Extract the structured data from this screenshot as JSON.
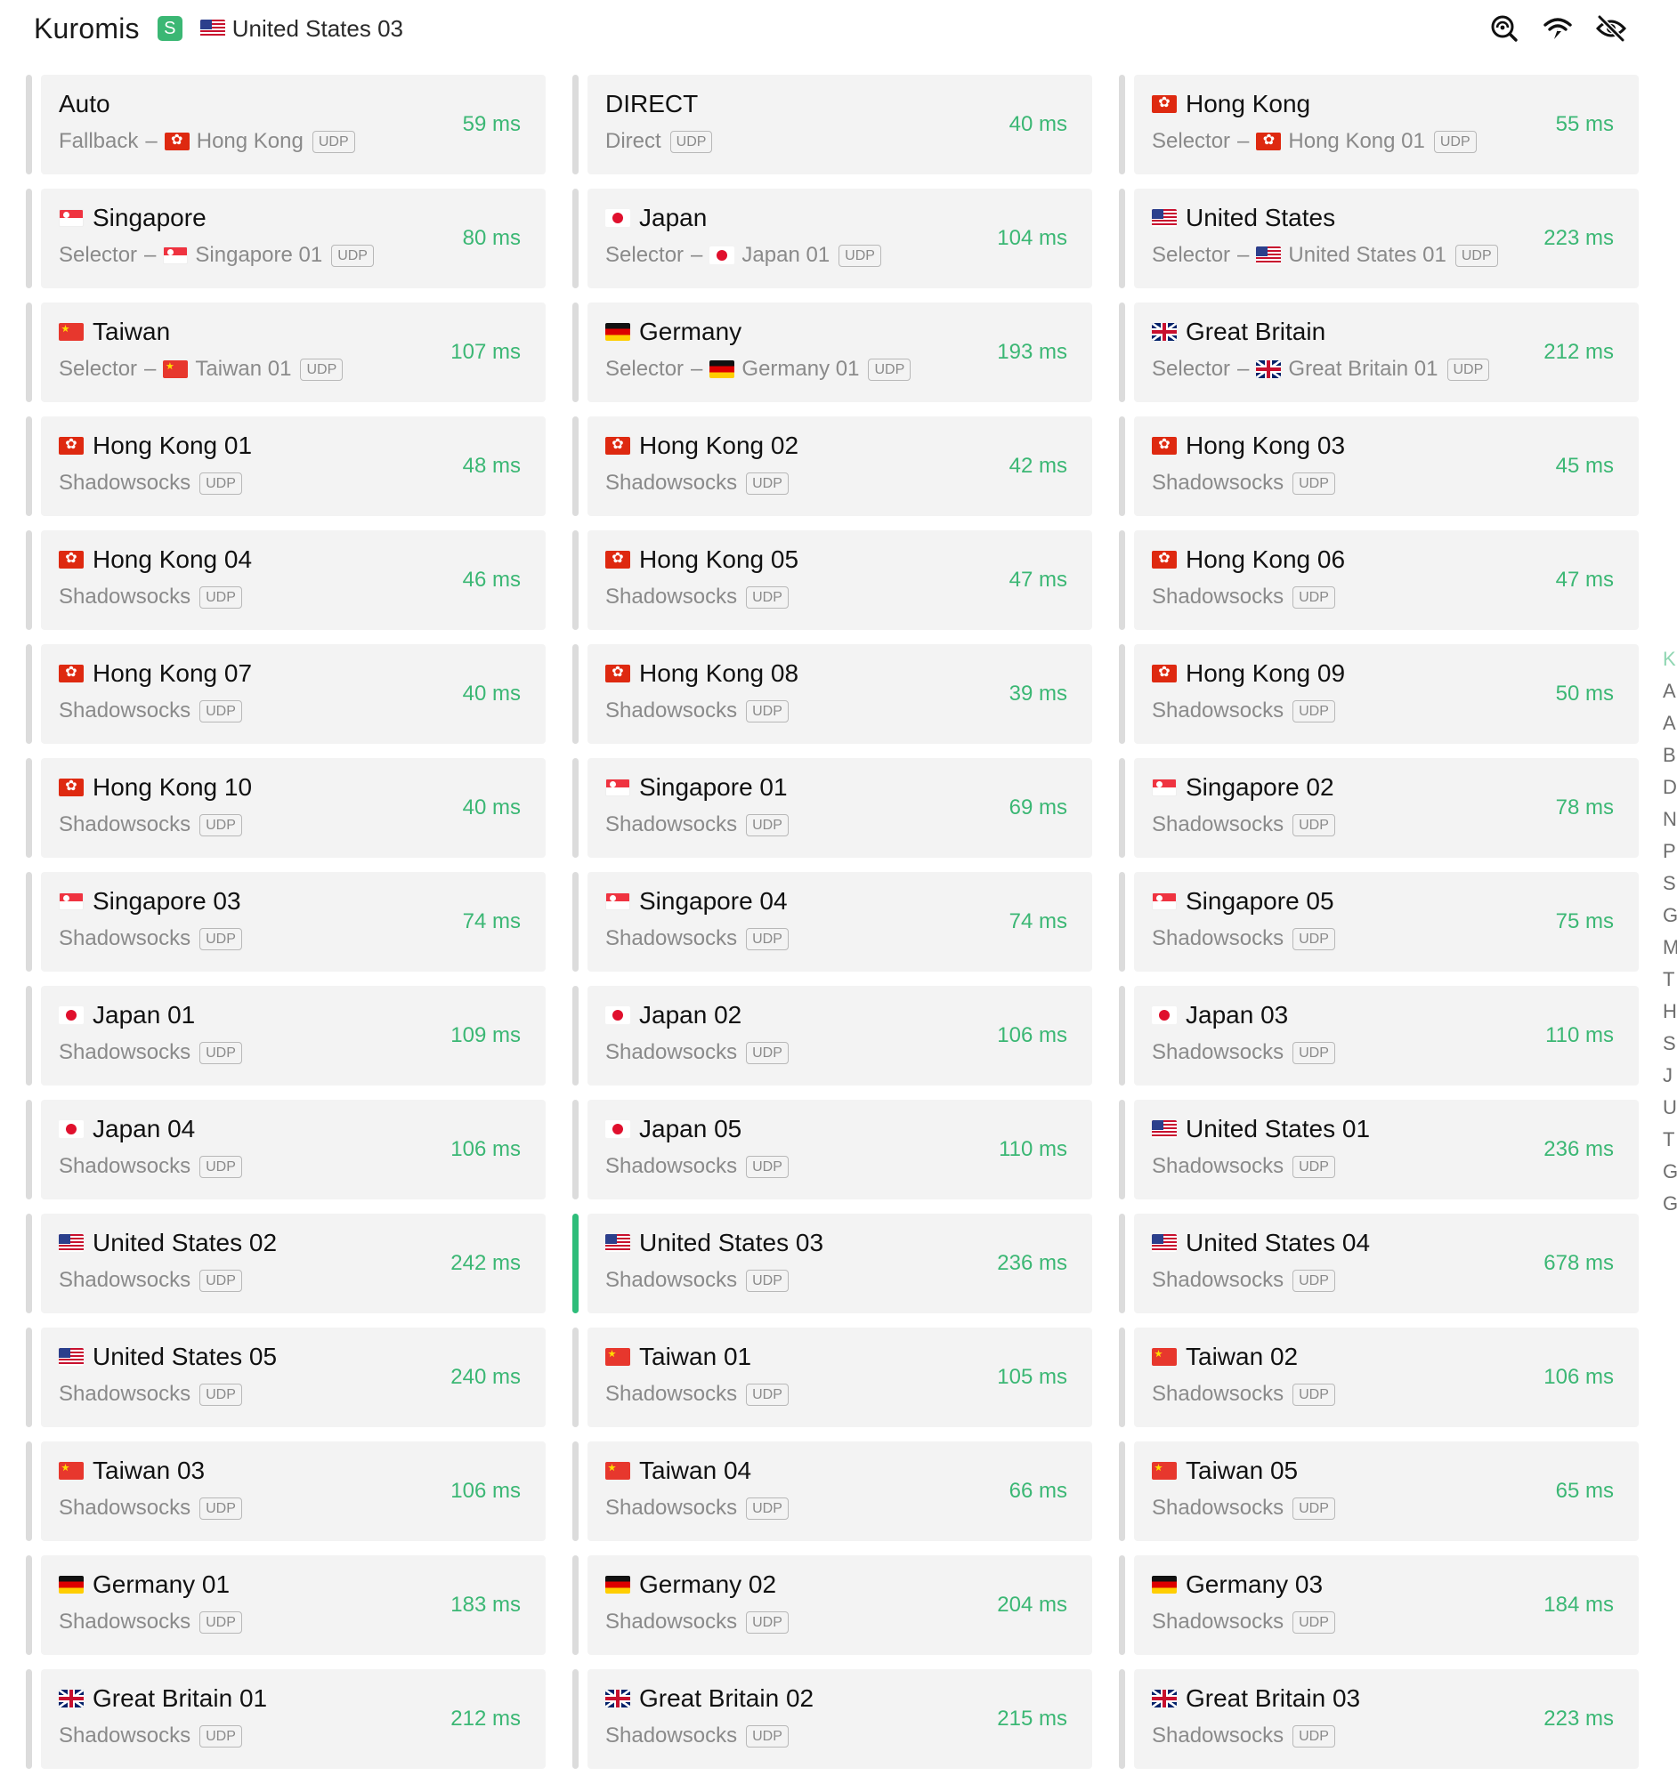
{
  "header": {
    "title": "Kuromis",
    "type_badge": "S",
    "current_proxy": {
      "flag": "us",
      "label": "United States 03"
    },
    "actions": [
      {
        "icon": "search-latency-icon"
      },
      {
        "icon": "wifi-speed-icon"
      },
      {
        "icon": "eye-slash-icon"
      }
    ]
  },
  "proxies": [
    {
      "name": "Auto",
      "flag": "",
      "type": "Fallback",
      "now_flag": "hk",
      "now": "Hong Kong",
      "udp": "UDP",
      "latency": "59 ms",
      "active": false
    },
    {
      "name": "DIRECT",
      "flag": "",
      "type": "Direct",
      "now_flag": "",
      "now": "",
      "udp": "UDP",
      "latency": "40 ms",
      "active": false
    },
    {
      "name": "Hong Kong",
      "flag": "hk",
      "type": "Selector",
      "now_flag": "hk",
      "now": "Hong Kong 01",
      "udp": "UDP",
      "latency": "55 ms",
      "active": false
    },
    {
      "name": "Singapore",
      "flag": "sg",
      "type": "Selector",
      "now_flag": "sg",
      "now": "Singapore 01",
      "udp": "UDP",
      "latency": "80 ms",
      "active": false
    },
    {
      "name": "Japan",
      "flag": "jp",
      "type": "Selector",
      "now_flag": "jp",
      "now": "Japan 01",
      "udp": "UDP",
      "latency": "104 ms",
      "active": false
    },
    {
      "name": "United States",
      "flag": "us",
      "type": "Selector",
      "now_flag": "us",
      "now": "United States 01",
      "udp": "UDP",
      "latency": "223 ms",
      "active": false
    },
    {
      "name": "Taiwan",
      "flag": "tw",
      "type": "Selector",
      "now_flag": "tw",
      "now": "Taiwan 01",
      "udp": "UDP",
      "latency": "107 ms",
      "active": false
    },
    {
      "name": "Germany",
      "flag": "de",
      "type": "Selector",
      "now_flag": "de",
      "now": "Germany 01",
      "udp": "UDP",
      "latency": "193 ms",
      "active": false
    },
    {
      "name": "Great Britain",
      "flag": "gb",
      "type": "Selector",
      "now_flag": "gb",
      "now": "Great Britain 01",
      "udp": "UDP",
      "latency": "212 ms",
      "active": false
    },
    {
      "name": "Hong Kong 01",
      "flag": "hk",
      "type": "Shadowsocks",
      "udp": "UDP",
      "latency": "48 ms",
      "active": false
    },
    {
      "name": "Hong Kong 02",
      "flag": "hk",
      "type": "Shadowsocks",
      "udp": "UDP",
      "latency": "42 ms",
      "active": false
    },
    {
      "name": "Hong Kong 03",
      "flag": "hk",
      "type": "Shadowsocks",
      "udp": "UDP",
      "latency": "45 ms",
      "active": false
    },
    {
      "name": "Hong Kong 04",
      "flag": "hk",
      "type": "Shadowsocks",
      "udp": "UDP",
      "latency": "46 ms",
      "active": false
    },
    {
      "name": "Hong Kong 05",
      "flag": "hk",
      "type": "Shadowsocks",
      "udp": "UDP",
      "latency": "47 ms",
      "active": false
    },
    {
      "name": "Hong Kong 06",
      "flag": "hk",
      "type": "Shadowsocks",
      "udp": "UDP",
      "latency": "47 ms",
      "active": false
    },
    {
      "name": "Hong Kong 07",
      "flag": "hk",
      "type": "Shadowsocks",
      "udp": "UDP",
      "latency": "40 ms",
      "active": false
    },
    {
      "name": "Hong Kong 08",
      "flag": "hk",
      "type": "Shadowsocks",
      "udp": "UDP",
      "latency": "39 ms",
      "active": false
    },
    {
      "name": "Hong Kong 09",
      "flag": "hk",
      "type": "Shadowsocks",
      "udp": "UDP",
      "latency": "50 ms",
      "active": false
    },
    {
      "name": "Hong Kong 10",
      "flag": "hk",
      "type": "Shadowsocks",
      "udp": "UDP",
      "latency": "40 ms",
      "active": false
    },
    {
      "name": "Singapore 01",
      "flag": "sg",
      "type": "Shadowsocks",
      "udp": "UDP",
      "latency": "69 ms",
      "active": false
    },
    {
      "name": "Singapore 02",
      "flag": "sg",
      "type": "Shadowsocks",
      "udp": "UDP",
      "latency": "78 ms",
      "active": false
    },
    {
      "name": "Singapore 03",
      "flag": "sg",
      "type": "Shadowsocks",
      "udp": "UDP",
      "latency": "74 ms",
      "active": false
    },
    {
      "name": "Singapore 04",
      "flag": "sg",
      "type": "Shadowsocks",
      "udp": "UDP",
      "latency": "74 ms",
      "active": false
    },
    {
      "name": "Singapore 05",
      "flag": "sg",
      "type": "Shadowsocks",
      "udp": "UDP",
      "latency": "75 ms",
      "active": false
    },
    {
      "name": "Japan 01",
      "flag": "jp",
      "type": "Shadowsocks",
      "udp": "UDP",
      "latency": "109 ms",
      "active": false
    },
    {
      "name": "Japan 02",
      "flag": "jp",
      "type": "Shadowsocks",
      "udp": "UDP",
      "latency": "106 ms",
      "active": false
    },
    {
      "name": "Japan 03",
      "flag": "jp",
      "type": "Shadowsocks",
      "udp": "UDP",
      "latency": "110 ms",
      "active": false
    },
    {
      "name": "Japan 04",
      "flag": "jp",
      "type": "Shadowsocks",
      "udp": "UDP",
      "latency": "106 ms",
      "active": false
    },
    {
      "name": "Japan 05",
      "flag": "jp",
      "type": "Shadowsocks",
      "udp": "UDP",
      "latency": "110 ms",
      "active": false
    },
    {
      "name": "United States 01",
      "flag": "us",
      "type": "Shadowsocks",
      "udp": "UDP",
      "latency": "236 ms",
      "active": false
    },
    {
      "name": "United States 02",
      "flag": "us",
      "type": "Shadowsocks",
      "udp": "UDP",
      "latency": "242 ms",
      "active": false
    },
    {
      "name": "United States 03",
      "flag": "us",
      "type": "Shadowsocks",
      "udp": "UDP",
      "latency": "236 ms",
      "active": true
    },
    {
      "name": "United States 04",
      "flag": "us",
      "type": "Shadowsocks",
      "udp": "UDP",
      "latency": "678 ms",
      "active": false
    },
    {
      "name": "United States 05",
      "flag": "us",
      "type": "Shadowsocks",
      "udp": "UDP",
      "latency": "240 ms",
      "active": false
    },
    {
      "name": "Taiwan 01",
      "flag": "tw",
      "type": "Shadowsocks",
      "udp": "UDP",
      "latency": "105 ms",
      "active": false
    },
    {
      "name": "Taiwan 02",
      "flag": "tw",
      "type": "Shadowsocks",
      "udp": "UDP",
      "latency": "106 ms",
      "active": false
    },
    {
      "name": "Taiwan 03",
      "flag": "tw",
      "type": "Shadowsocks",
      "udp": "UDP",
      "latency": "106 ms",
      "active": false
    },
    {
      "name": "Taiwan 04",
      "flag": "tw",
      "type": "Shadowsocks",
      "udp": "UDP",
      "latency": "66 ms",
      "active": false
    },
    {
      "name": "Taiwan 05",
      "flag": "tw",
      "type": "Shadowsocks",
      "udp": "UDP",
      "latency": "65 ms",
      "active": false
    },
    {
      "name": "Germany 01",
      "flag": "de",
      "type": "Shadowsocks",
      "udp": "UDP",
      "latency": "183 ms",
      "active": false
    },
    {
      "name": "Germany 02",
      "flag": "de",
      "type": "Shadowsocks",
      "udp": "UDP",
      "latency": "204 ms",
      "active": false
    },
    {
      "name": "Germany 03",
      "flag": "de",
      "type": "Shadowsocks",
      "udp": "UDP",
      "latency": "184 ms",
      "active": false
    },
    {
      "name": "Great Britain 01",
      "flag": "gb",
      "type": "Shadowsocks",
      "udp": "UDP",
      "latency": "212 ms",
      "active": false
    },
    {
      "name": "Great Britain 02",
      "flag": "gb",
      "type": "Shadowsocks",
      "udp": "UDP",
      "latency": "215 ms",
      "active": false
    },
    {
      "name": "Great Britain 03",
      "flag": "gb",
      "type": "Shadowsocks",
      "udp": "UDP",
      "latency": "223 ms",
      "active": false
    }
  ],
  "index": [
    "K",
    "A",
    "A",
    "B",
    "D",
    "N",
    "P",
    "S",
    "G",
    "M",
    "T",
    "H",
    "S",
    "J",
    "U",
    "T",
    "G",
    "G"
  ],
  "colors": {
    "accent": "#3bb774",
    "active_marker": "#2ebd7a",
    "card_bg": "#f3f3f3",
    "marker": "#dcdcdc"
  }
}
